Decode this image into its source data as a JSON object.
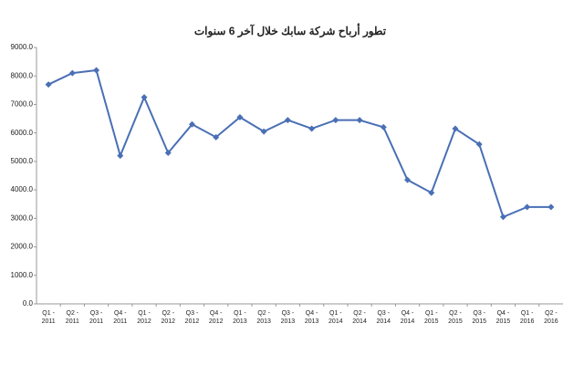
{
  "chart_data": {
    "type": "line",
    "title": "تطور أرباح شركة سابك خلال آخر 6 سنوات",
    "categories": [
      "Q1 - 2011",
      "Q2 - 2011",
      "Q3 - 2011",
      "Q4 - 2011",
      "Q1 - 2012",
      "Q2 - 2012",
      "Q3 - 2012",
      "Q4 - 2012",
      "Q1 - 2013",
      "Q2 - 2013",
      "Q3 - 2013",
      "Q4 - 2013",
      "Q1 - 2014",
      "Q2 - 2014",
      "Q3 - 2014",
      "Q4 - 2014",
      "Q1 - 2015",
      "Q2 - 2015",
      "Q3 - 2015",
      "Q4 - 2015",
      "Q1 - 2016",
      "Q2 - 2016"
    ],
    "values": [
      7700,
      8100,
      8200,
      5200,
      7250,
      5300,
      6300,
      5850,
      6550,
      6050,
      6450,
      6150,
      6450,
      6450,
      6200,
      4350,
      3900,
      6150,
      5600,
      3050,
      3400,
      3400
    ],
    "color": "#4a6fb5",
    "ylim": [
      0,
      9000
    ],
    "yticks": [
      {
        "value": 0,
        "label": "0.0"
      },
      {
        "value": 1000,
        "label": "1000.0"
      },
      {
        "value": 2000,
        "label": "2000.0"
      },
      {
        "value": 3000,
        "label": "3000.0"
      },
      {
        "value": 4000,
        "label": "4000.0"
      },
      {
        "value": 5000,
        "label": "5000.0"
      },
      {
        "value": 6000,
        "label": "6000.0"
      },
      {
        "value": 7000,
        "label": "7000.0"
      },
      {
        "value": 8000,
        "label": "8000.0"
      },
      {
        "value": 9000,
        "label": "9000.0"
      }
    ],
    "grid": false
  }
}
